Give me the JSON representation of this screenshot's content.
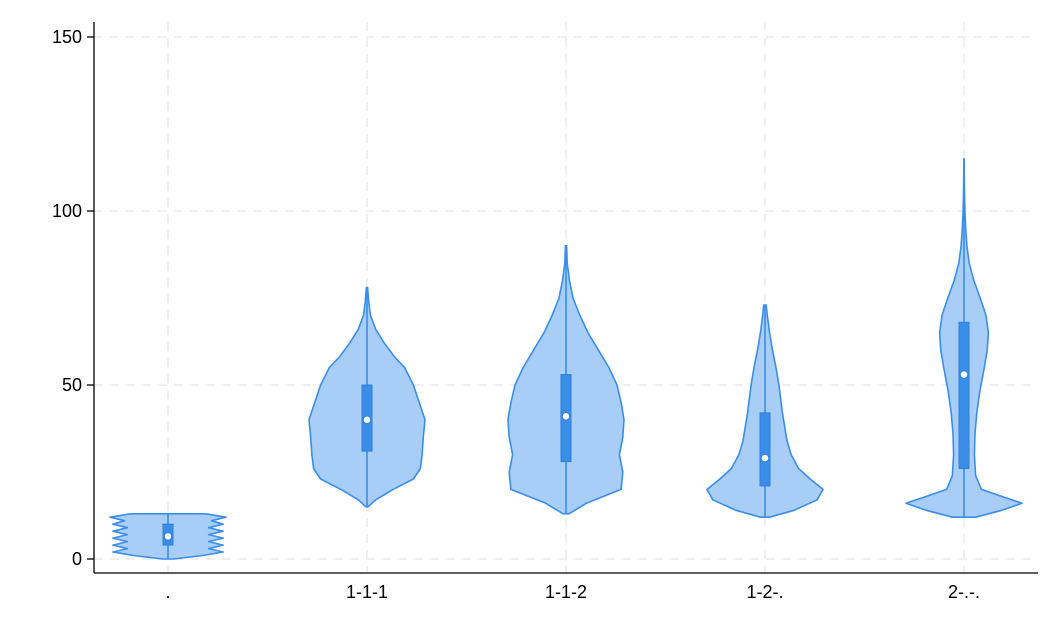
{
  "chart_data": {
    "type": "violin",
    "title": "",
    "xlabel": "",
    "ylabel": "",
    "ylim": [
      -4,
      154
    ],
    "yticks": [
      0,
      50,
      100,
      150
    ],
    "grid": true,
    "categories": [
      ".",
      "1-1-1",
      "1-1-2",
      "1-2-.",
      "2-.-."
    ],
    "groups": [
      {
        "category": ".",
        "min": 0,
        "max": 13,
        "q1": 4,
        "median": 6.5,
        "q3": 10,
        "density": [
          [
            0,
            0.1
          ],
          [
            1,
            0.6
          ],
          [
            2,
            0.95
          ],
          [
            3,
            0.7
          ],
          [
            4,
            0.95
          ],
          [
            5,
            0.7
          ],
          [
            6,
            0.95
          ],
          [
            7,
            0.7
          ],
          [
            8,
            0.95
          ],
          [
            9,
            0.7
          ],
          [
            10,
            0.95
          ],
          [
            11,
            0.75
          ],
          [
            12,
            1.0
          ],
          [
            13,
            0.65
          ]
        ]
      },
      {
        "category": "1-1-1",
        "min": 15,
        "max": 78,
        "q1": 31,
        "median": 40,
        "q3": 50,
        "density": [
          [
            15,
            0.02
          ],
          [
            17,
            0.15
          ],
          [
            20,
            0.45
          ],
          [
            23,
            0.8
          ],
          [
            26,
            0.92
          ],
          [
            30,
            0.95
          ],
          [
            35,
            0.97
          ],
          [
            40,
            1.0
          ],
          [
            45,
            0.9
          ],
          [
            50,
            0.8
          ],
          [
            55,
            0.65
          ],
          [
            58,
            0.48
          ],
          [
            62,
            0.3
          ],
          [
            66,
            0.15
          ],
          [
            70,
            0.06
          ],
          [
            74,
            0.03
          ],
          [
            78,
            0.01
          ]
        ]
      },
      {
        "category": "1-1-2",
        "min": 13,
        "max": 90,
        "q1": 28,
        "median": 41,
        "q3": 53,
        "density": [
          [
            13,
            0.05
          ],
          [
            16,
            0.35
          ],
          [
            20,
            0.95
          ],
          [
            25,
            0.98
          ],
          [
            30,
            0.92
          ],
          [
            35,
            0.98
          ],
          [
            40,
            1.0
          ],
          [
            45,
            0.95
          ],
          [
            50,
            0.88
          ],
          [
            55,
            0.74
          ],
          [
            60,
            0.56
          ],
          [
            65,
            0.38
          ],
          [
            70,
            0.24
          ],
          [
            75,
            0.12
          ],
          [
            80,
            0.06
          ],
          [
            85,
            0.02
          ],
          [
            90,
            0.01
          ]
        ]
      },
      {
        "category": "1-2-.",
        "min": 12,
        "max": 73,
        "q1": 21,
        "median": 29,
        "q3": 42,
        "density": [
          [
            12,
            0.08
          ],
          [
            14,
            0.5
          ],
          [
            17,
            0.9
          ],
          [
            20,
            1.0
          ],
          [
            23,
            0.78
          ],
          [
            26,
            0.58
          ],
          [
            30,
            0.45
          ],
          [
            34,
            0.38
          ],
          [
            38,
            0.34
          ],
          [
            42,
            0.3
          ],
          [
            46,
            0.27
          ],
          [
            50,
            0.24
          ],
          [
            55,
            0.19
          ],
          [
            60,
            0.13
          ],
          [
            65,
            0.08
          ],
          [
            70,
            0.04
          ],
          [
            73,
            0.02
          ]
        ]
      },
      {
        "category": "2-.-.",
        "min": 12,
        "max": 115,
        "q1": 26,
        "median": 53,
        "q3": 68,
        "density": [
          [
            12,
            0.2
          ],
          [
            14,
            0.65
          ],
          [
            16,
            1.0
          ],
          [
            18,
            0.65
          ],
          [
            20,
            0.3
          ],
          [
            24,
            0.2
          ],
          [
            30,
            0.18
          ],
          [
            36,
            0.19
          ],
          [
            42,
            0.22
          ],
          [
            48,
            0.27
          ],
          [
            55,
            0.35
          ],
          [
            60,
            0.4
          ],
          [
            65,
            0.42
          ],
          [
            70,
            0.38
          ],
          [
            75,
            0.28
          ],
          [
            80,
            0.17
          ],
          [
            85,
            0.09
          ],
          [
            90,
            0.05
          ],
          [
            95,
            0.03
          ],
          [
            100,
            0.015
          ],
          [
            105,
            0.008
          ],
          [
            110,
            0.005
          ],
          [
            115,
            0.002
          ]
        ]
      }
    ],
    "colors": {
      "fill": "#a8cdf7",
      "outline": "#3a8ee8",
      "box": "#3a8ee8",
      "median_marker": "#ffffff",
      "grid": "#e6e6e6",
      "axis": "#000000"
    }
  }
}
